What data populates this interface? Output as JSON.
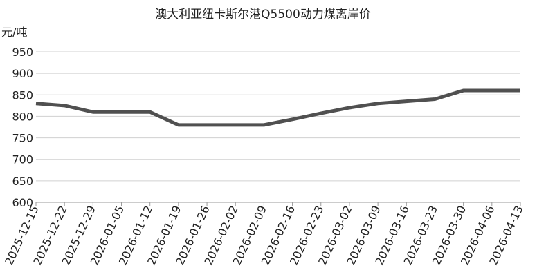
{
  "chart_data": {
    "type": "line",
    "title": "澳大利亚纽卡斯尔港Q5500动力煤离岸价",
    "ylabel": "元/吨",
    "xlabel": "",
    "ylim": [
      600,
      950
    ],
    "yticks": [
      600,
      650,
      700,
      750,
      800,
      850,
      900,
      950
    ],
    "grid": true,
    "line_color": "#505050",
    "categories": [
      "2025-12-15",
      "2025-12-22",
      "2025-12-29",
      "2026-01-05",
      "2026-01-12",
      "2026-01-19",
      "2026-01-26",
      "2026-02-02",
      "2026-02-09",
      "2026-02-16",
      "2026-02-23",
      "2026-03-02",
      "2026-03-09",
      "2026-03-16",
      "2026-03-23",
      "2026-03-30",
      "2026-04-06",
      "2026-04-13"
    ],
    "values": [
      830,
      825,
      810,
      810,
      810,
      780,
      780,
      780,
      780,
      793,
      807,
      820,
      830,
      835,
      840,
      860,
      860,
      860
    ]
  }
}
